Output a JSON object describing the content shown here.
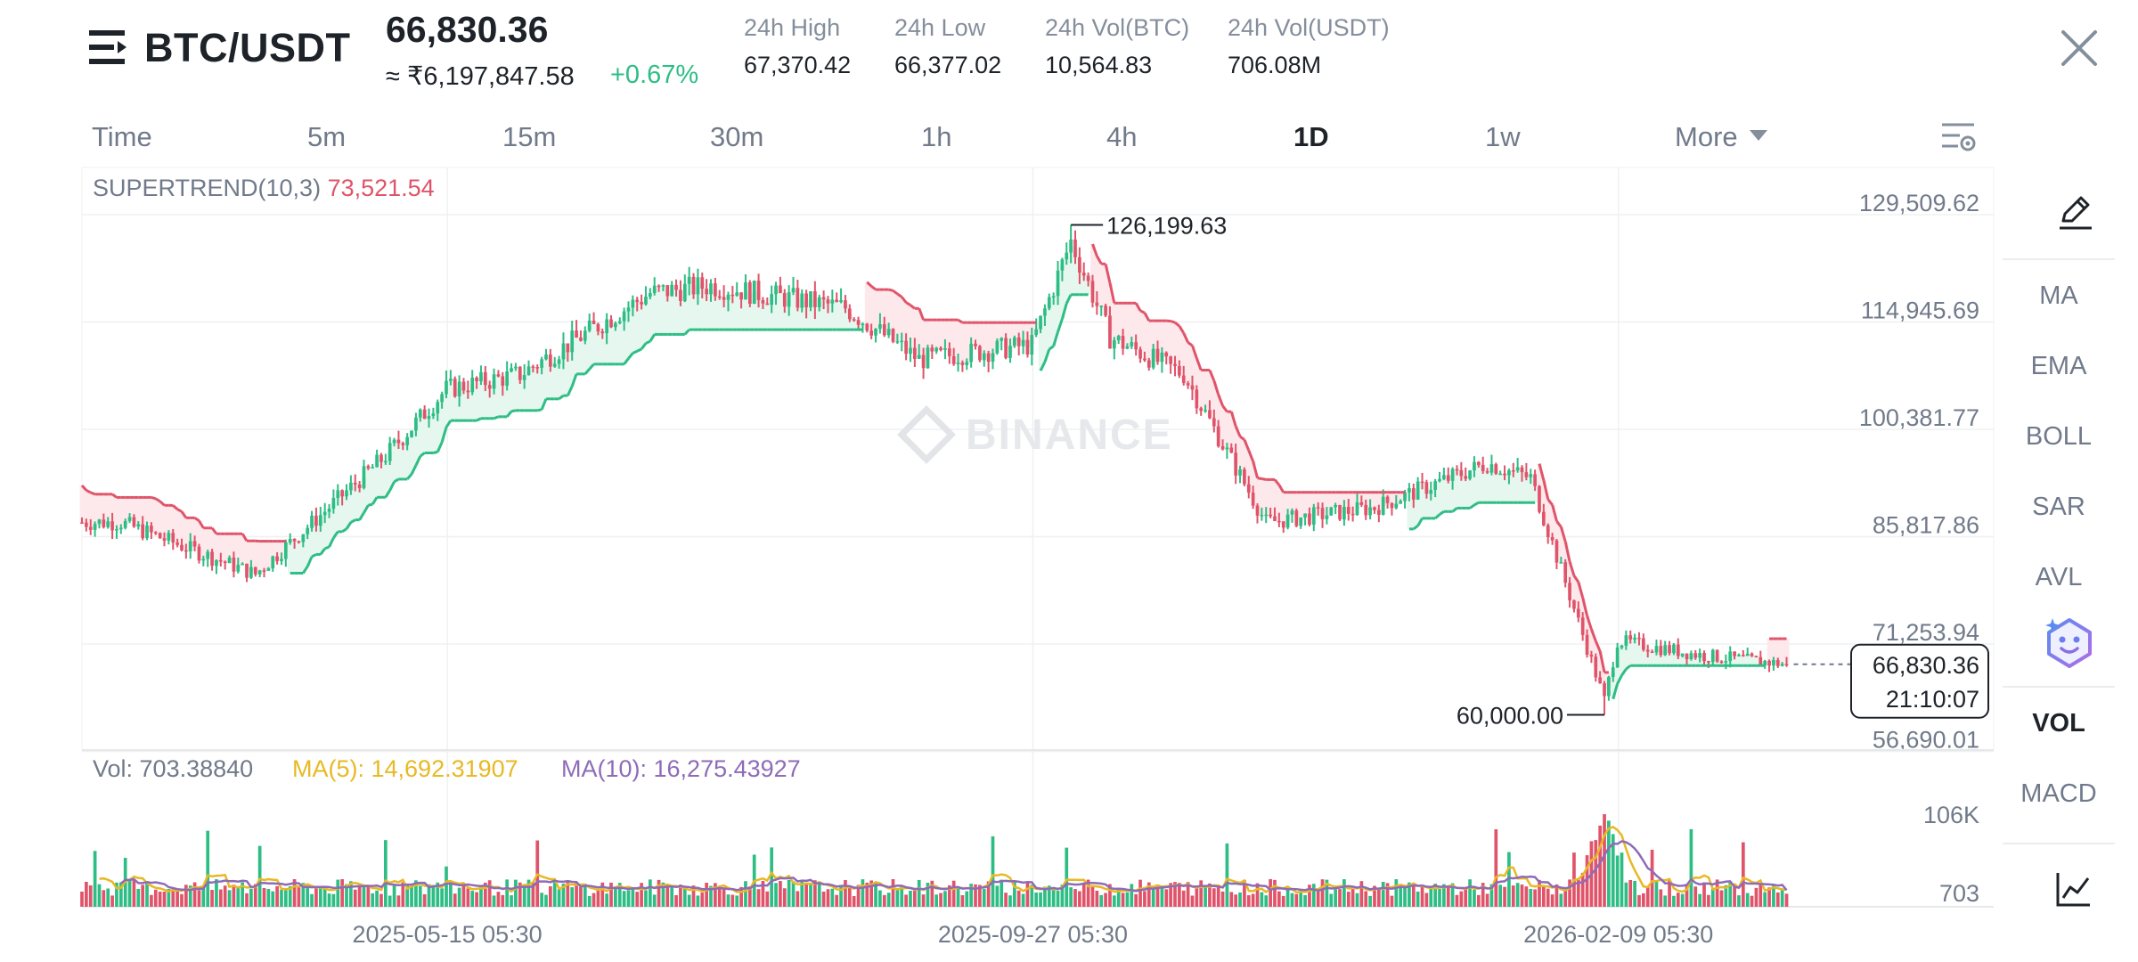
{
  "header": {
    "pair": "BTC/USDT",
    "last_price": "66,830.36",
    "inr_price": "≈ ₹6,197,847.58",
    "change": "+0.67%",
    "stats": [
      {
        "label": "24h High",
        "value": "67,370.42"
      },
      {
        "label": "24h Low",
        "value": "66,377.02"
      },
      {
        "label": "24h Vol(BTC)",
        "value": "10,564.83"
      },
      {
        "label": "24h Vol(USDT)",
        "value": "706.08M"
      }
    ]
  },
  "timeframes": [
    "Time",
    "5m",
    "15m",
    "30m",
    "1h",
    "4h",
    "1D",
    "1w",
    "More"
  ],
  "active_timeframe": "1D",
  "indicator_side": [
    "MA",
    "EMA",
    "BOLL",
    "SAR",
    "AVL",
    "VOL",
    "MACD"
  ],
  "active_indicator": "VOL",
  "icons": {
    "menu": "menu-icon",
    "close": "close-icon",
    "settings": "chart-settings-icon",
    "draw": "pencil-icon",
    "assistant": "ai-assistant-icon",
    "chart": "line-chart-icon"
  },
  "colors": {
    "up": "#2ebd85",
    "down": "#e0546a",
    "ma5": "#e8b923",
    "ma10": "#8e6bb8"
  },
  "chart": {
    "supertrend_label": "SUPERTREND(10,3)",
    "supertrend_value": "73,521.54",
    "price_ticks": [
      "129,509.62",
      "114,945.69",
      "100,381.77",
      "85,817.86",
      "71,253.94",
      "56,690.01"
    ],
    "high_marker": "126,199.63",
    "low_marker": "60,000.00",
    "current_price": "66,830.36",
    "countdown": "21:10:07",
    "watermark": "BINANCE",
    "vol_label": "Vol: 703.38840",
    "ma5_label": "MA(5): 14,692.31907",
    "ma10_label": "MA(10): 16,275.43927",
    "vol_ticks": [
      "106K",
      "703"
    ],
    "date_ticks": [
      "2025-05-15 05:30",
      "2025-09-27 05:30",
      "2026-02-09 05:30"
    ]
  },
  "chart_data": {
    "type": "candlestick",
    "symbol": "BTC/USDT",
    "interval": "1D",
    "y_range": [
      56690.01,
      129509.62
    ],
    "price_trend": {
      "x": [
        "2025-03-01",
        "2025-04-01",
        "2025-05-01",
        "2025-05-15",
        "2025-06-01",
        "2025-07-01",
        "2025-07-15",
        "2025-08-15",
        "2025-09-01",
        "2025-09-27",
        "2025-10-06",
        "2025-10-15",
        "2025-11-01",
        "2025-11-20",
        "2025-12-15",
        "2026-01-10",
        "2026-01-20",
        "2026-02-06",
        "2026-02-09",
        "2026-03-01",
        "2026-03-20"
      ],
      "close": [
        86000,
        79000,
        95000,
        104000,
        106000,
        117000,
        118000,
        115000,
        108000,
        110000,
        124000,
        111000,
        106000,
        86000,
        88000,
        94000,
        92000,
        62000,
        70000,
        68000,
        66830
      ]
    },
    "annotations": {
      "high": 126199.63,
      "low": 60000.0,
      "last": 66830.36
    },
    "supertrend": {
      "params": "10,3",
      "value": 73521.54
    },
    "volume": {
      "last": 703.3884,
      "ma5": 14692.31907,
      "ma10": 16275.43927,
      "y_ticks": [
        "106K",
        "703"
      ]
    }
  }
}
